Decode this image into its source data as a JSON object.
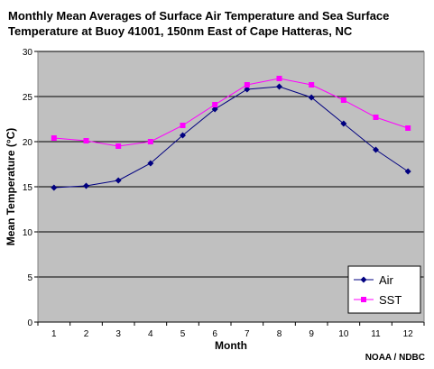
{
  "title": "Monthly Mean Averages of Surface Air Temperature and Sea Surface Temperature at Buoy 41001, 150nm East of Cape Hatteras, NC",
  "source": "NOAA / NDBC",
  "colors": {
    "plot_background": "#c0c0c0",
    "gridline": "#000000",
    "air": "#000080",
    "sst": "#ff00ff"
  },
  "chart_data": {
    "type": "line",
    "title": "Monthly Mean Averages of Surface Air Temperature and Sea Surface Temperature at Buoy 41001, 150nm East of Cape Hatteras, NC",
    "xlabel": "Month",
    "ylabel": "Mean Temperature (°C)",
    "x": [
      1,
      2,
      3,
      4,
      5,
      6,
      7,
      8,
      9,
      10,
      11,
      12
    ],
    "ylim": [
      0,
      30
    ],
    "yticks": [
      0,
      5,
      10,
      15,
      20,
      25,
      30
    ],
    "grid": true,
    "legend_position": "bottom-right",
    "series": [
      {
        "name": "Air",
        "marker": "diamond",
        "color": "#000080",
        "values": [
          14.9,
          15.1,
          15.7,
          17.6,
          20.7,
          23.6,
          25.8,
          26.1,
          24.9,
          22.0,
          19.1,
          16.7
        ]
      },
      {
        "name": "SST",
        "marker": "square",
        "color": "#ff00ff",
        "values": [
          20.4,
          20.1,
          19.5,
          20.0,
          21.8,
          24.1,
          26.3,
          27.0,
          26.3,
          24.6,
          22.7,
          21.5
        ]
      }
    ]
  }
}
